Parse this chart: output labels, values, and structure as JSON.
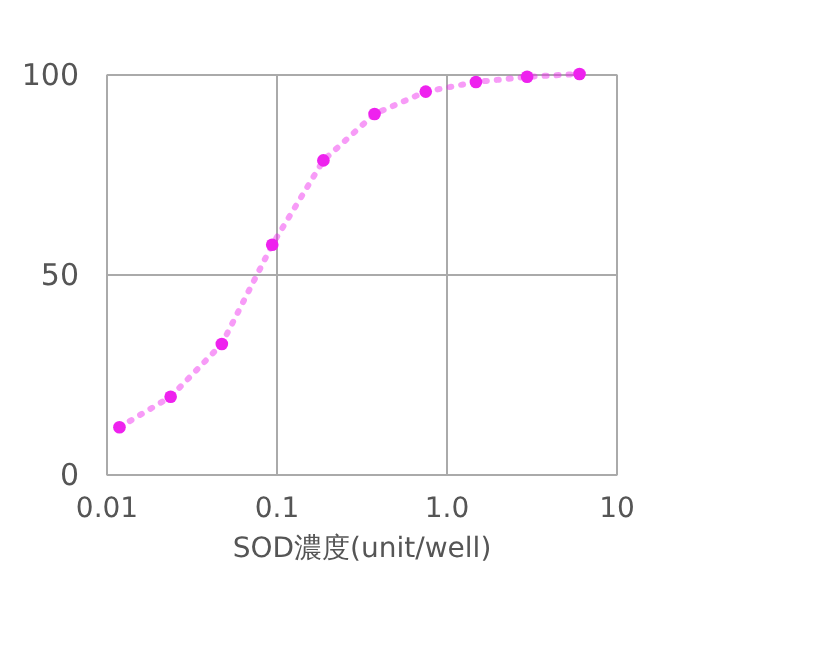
{
  "chart_data": {
    "type": "line",
    "xlabel": "SOD濃度(unit/well)",
    "log": "x",
    "grid": true,
    "marker": "circle",
    "line_style": "dotted",
    "xlim": [
      0.01,
      10
    ],
    "xticks": [
      0.01,
      0.1,
      {
        "value": 1,
        "label": "1.0"
      },
      10
    ],
    "ylim": [
      0,
      100
    ],
    "yticks": [
      0,
      50,
      100
    ],
    "x": [
      0.012,
      0.024,
      0.048,
      0.095,
      0.19,
      0.38,
      0.76,
      1.5,
      3.0,
      6.1
    ],
    "series": [
      {
        "color": "#ee22ee",
        "values": [
          11.7,
          19.3,
          32.5,
          57.3,
          78.4,
          90,
          95.6,
          98,
          99.3,
          100
        ]
      }
    ]
  }
}
